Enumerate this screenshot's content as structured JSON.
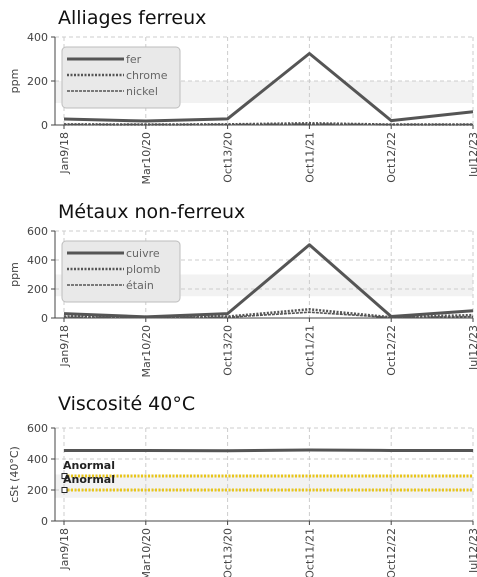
{
  "colors": {
    "series": "#555555",
    "grid": "#cccccc",
    "axis": "#444444",
    "plot_band": "#f2f2f2",
    "limit": "#e8c51a",
    "legend_bg": "#e9e9e9"
  },
  "chart_data": [
    {
      "type": "line",
      "title": "Alliages ferreux",
      "ylabel": "ppm",
      "xlabel": "",
      "categories": [
        "Jan9/18",
        "Mar10/20",
        "Oct13/20",
        "Oct11/21",
        "Oct12/22",
        "Jul12/23"
      ],
      "ylim": [
        0,
        400
      ],
      "yticks": [
        0,
        200,
        400
      ],
      "grid": true,
      "legend_position": "top-left",
      "series": [
        {
          "name": "fer",
          "style": "solid",
          "values": [
            27,
            18,
            28,
            325,
            20,
            60
          ]
        },
        {
          "name": "chrome",
          "style": "dotted",
          "values": [
            3,
            2,
            3,
            8,
            2,
            2
          ]
        },
        {
          "name": "nickel",
          "style": "dashed",
          "values": [
            2,
            2,
            2,
            4,
            2,
            2
          ]
        }
      ]
    },
    {
      "type": "line",
      "title": "Métaux non-ferreux",
      "ylabel": "ppm",
      "xlabel": "",
      "categories": [
        "Jan9/18",
        "Mar10/20",
        "Oct13/20",
        "Oct11/21",
        "Oct12/22",
        "Jul12/23"
      ],
      "ylim": [
        0,
        600
      ],
      "yticks": [
        0,
        200,
        400,
        600
      ],
      "grid": true,
      "legend_position": "top-left",
      "series": [
        {
          "name": "cuivre",
          "style": "solid",
          "values": [
            30,
            8,
            30,
            505,
            10,
            50
          ]
        },
        {
          "name": "plomb",
          "style": "dotted",
          "values": [
            10,
            5,
            10,
            60,
            5,
            20
          ]
        },
        {
          "name": "étain",
          "style": "dashed",
          "values": [
            5,
            3,
            5,
            40,
            3,
            10
          ]
        }
      ]
    },
    {
      "type": "line",
      "title": "Viscosité 40°C",
      "ylabel": "cSt (40°C)",
      "xlabel": "",
      "categories": [
        "Jan9/18",
        "Mar10/20",
        "Oct13/20",
        "Oct11/21",
        "Oct12/22",
        "Jul12/23"
      ],
      "ylim": [
        0,
        600
      ],
      "yticks": [
        0,
        200,
        400,
        600
      ],
      "grid": true,
      "series": [
        {
          "name": "",
          "style": "solid",
          "values": [
            455,
            455,
            453,
            458,
            455,
            455
          ]
        }
      ],
      "limits": [
        {
          "label": "Anormal",
          "value": 290
        },
        {
          "label": "Anormal",
          "value": 200
        }
      ]
    }
  ]
}
